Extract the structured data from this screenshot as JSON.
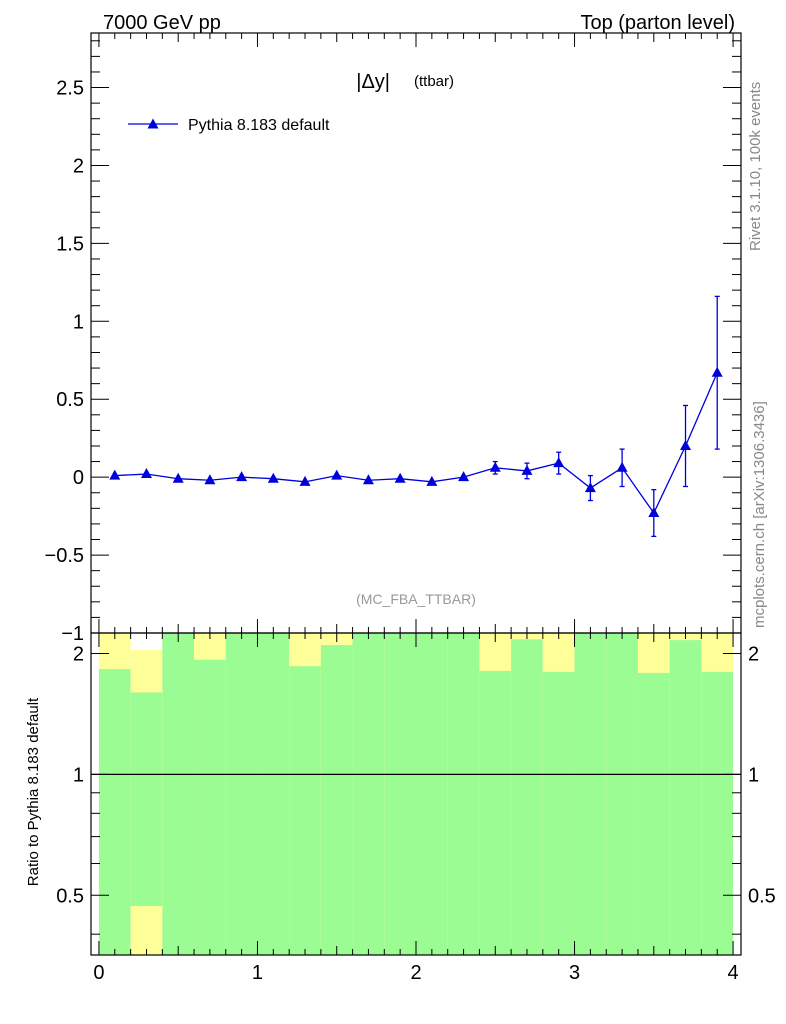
{
  "header": {
    "left": "7000 GeV pp",
    "right": "Top (parton level)"
  },
  "side_text": {
    "rivet": "Rivet 3.1.10,  100k events",
    "mcplots": "mcplots.cern.ch [arXiv:1306.3436]"
  },
  "chart_data": {
    "type": "line",
    "title": "|Δy| (ttbar)",
    "title_main": "|Δy|",
    "title_sub": "(ttbar)",
    "watermark": "(MC_FBA_TTBAR)",
    "legend": {
      "label": "Pythia 8.183 default",
      "placement": "top-left"
    },
    "xlim": [
      -0.05,
      4.05
    ],
    "ylim": [
      -1.0,
      2.85
    ],
    "x_ticks": [
      0,
      1,
      2,
      3,
      4
    ],
    "x_tick_labels": [
      "0",
      "1",
      "2",
      "3",
      "4"
    ],
    "y_ticks": [
      -1,
      -0.5,
      0,
      0.5,
      1,
      1.5,
      2,
      2.5
    ],
    "y_tick_labels": [
      "−1",
      "−0.5",
      "0",
      "0.5",
      "1",
      "1.5",
      "2",
      "2.5"
    ],
    "series": [
      {
        "name": "Pythia 8.183 default",
        "color": "#0000dd",
        "marker": "triangle-up",
        "x": [
          0.1,
          0.3,
          0.5,
          0.7,
          0.9,
          1.1,
          1.3,
          1.5,
          1.7,
          1.9,
          2.1,
          2.3,
          2.5,
          2.7,
          2.9,
          3.1,
          3.3,
          3.5,
          3.7,
          3.9
        ],
        "y": [
          0.01,
          0.02,
          -0.01,
          -0.02,
          0.0,
          -0.01,
          -0.03,
          0.01,
          -0.02,
          -0.01,
          -0.03,
          0.0,
          0.06,
          0.04,
          0.09,
          -0.07,
          0.06,
          -0.23,
          0.2,
          0.67
        ],
        "yerr": [
          0.01,
          0.01,
          0.01,
          0.01,
          0.01,
          0.01,
          0.01,
          0.01,
          0.01,
          0.01,
          0.01,
          0.02,
          0.04,
          0.05,
          0.07,
          0.08,
          0.12,
          0.15,
          0.26,
          0.49
        ]
      }
    ],
    "ratio": {
      "ylabel": "Ratio to Pythia 8.183 default",
      "ylim": [
        0.355,
        2.25
      ],
      "y_ticks": [
        0.5,
        1,
        2
      ],
      "y_tick_labels": [
        "0.5",
        "1",
        "2"
      ],
      "reference": 1,
      "bin_edges": [
        0.0,
        0.2,
        0.4,
        0.6,
        0.8,
        1.0,
        1.2,
        1.4,
        1.6,
        1.8,
        2.0,
        2.2,
        2.4,
        2.6,
        2.8,
        3.0,
        3.2,
        3.4,
        3.6,
        3.8,
        4.0
      ],
      "green_band_upper": [
        1.83,
        1.6,
        2.25,
        1.93,
        2.25,
        2.25,
        1.86,
        2.1,
        2.25,
        2.25,
        2.25,
        2.25,
        1.81,
        2.17,
        1.8,
        2.25,
        2.25,
        1.79,
        2.16,
        1.8
      ],
      "yellow_band_upper": [
        2.25,
        2.04,
        2.25,
        2.25,
        2.25,
        2.25,
        2.25,
        2.25,
        2.25,
        2.25,
        2.25,
        2.25,
        2.25,
        2.25,
        2.25,
        2.25,
        2.25,
        2.25,
        2.25,
        2.25
      ],
      "yellow_band_lower": [
        0.355,
        0.355,
        0.355,
        0.355,
        0.355,
        0.355,
        0.355,
        0.355,
        0.355,
        0.355,
        0.355,
        0.355,
        0.355,
        0.355,
        0.355,
        0.355,
        0.355,
        0.355,
        0.355,
        0.355
      ],
      "green_band_lower": [
        0.355,
        0.47,
        0.355,
        0.355,
        0.355,
        0.355,
        0.355,
        0.355,
        0.355,
        0.355,
        0.355,
        0.355,
        0.355,
        0.355,
        0.355,
        0.355,
        0.355,
        0.355,
        0.355,
        0.355
      ],
      "green_color": "#9cfc94",
      "yellow_color": "#ffff99"
    }
  }
}
